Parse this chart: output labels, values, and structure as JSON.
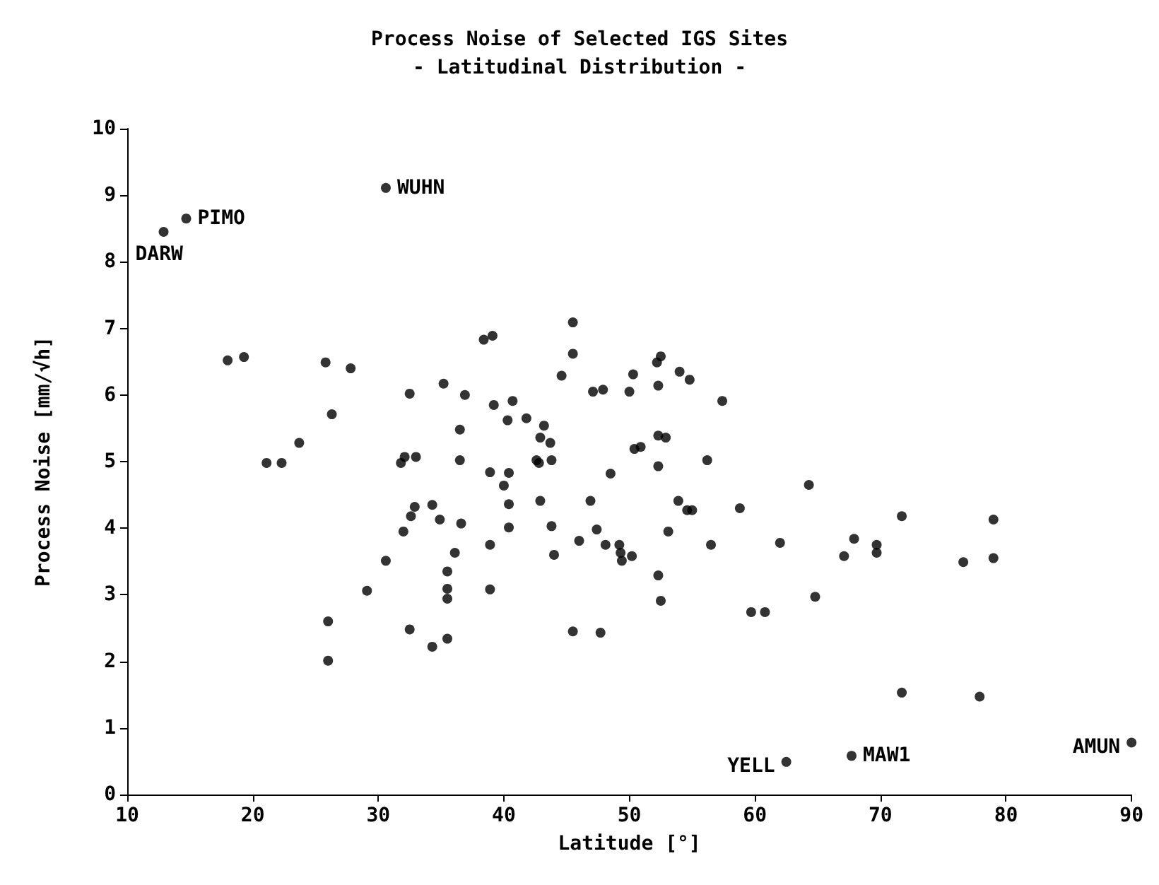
{
  "chart_data": {
    "type": "scatter",
    "title": "Process Noise of Selected IGS Sites",
    "subtitle": "- Latitudinal Distribution -",
    "xlabel": "Latitude [°]",
    "ylabel": "Process Noise [mm/√h]",
    "xlim": [
      10,
      90
    ],
    "xticks": [
      10,
      20,
      30,
      40,
      50,
      60,
      70,
      80,
      90
    ],
    "ylim": [
      0,
      10
    ],
    "yticks": [
      0,
      1,
      2,
      3,
      4,
      5,
      6,
      7,
      8,
      9,
      10
    ],
    "grid": false,
    "marker": "circle",
    "series": [
      {
        "color": "#000000",
        "x": [
          12.9,
          14.7,
          30.6,
          18.0,
          19.3,
          25.8,
          27.8,
          32.5,
          35.2,
          36.9,
          26.3,
          36.5,
          23.7,
          21.1,
          22.3,
          31.8,
          32.1,
          33.0,
          36.5,
          34.3,
          32.9,
          32.6,
          34.9,
          36.6,
          32.0,
          36.1,
          30.6,
          35.5,
          35.5,
          35.5,
          29.1,
          26.0,
          32.5,
          35.5,
          34.3,
          26.0,
          45.5,
          38.4,
          39.1,
          45.5,
          52.5,
          52.2,
          44.6,
          50.3,
          54.0,
          54.8,
          47.1,
          47.9,
          50.0,
          52.3,
          39.2,
          40.7,
          57.4,
          40.3,
          41.8,
          43.2,
          42.9,
          43.7,
          52.3,
          52.9,
          50.4,
          50.9,
          42.6,
          42.8,
          43.8,
          52.3,
          56.2,
          38.9,
          40.4,
          48.5,
          40.0,
          40.4,
          42.9,
          46.9,
          53.9,
          54.6,
          55.0,
          58.8,
          40.4,
          43.8,
          47.4,
          53.1,
          46.0,
          48.1,
          49.2,
          49.3,
          49.4,
          50.2,
          56.5,
          38.9,
          44.0,
          38.9,
          52.3,
          52.5,
          59.7,
          60.8,
          45.5,
          47.7,
          64.3,
          62.0,
          67.9,
          67.1,
          69.7,
          69.7,
          71.7,
          79.0,
          76.6,
          79.0,
          64.8,
          71.7,
          77.9,
          62.5,
          67.7,
          90.0
        ],
        "values": [
          8.45,
          8.65,
          9.11,
          6.52,
          6.57,
          6.49,
          6.4,
          6.02,
          6.17,
          6.0,
          5.71,
          5.48,
          5.28,
          4.98,
          4.98,
          4.98,
          5.07,
          5.07,
          5.02,
          4.35,
          4.32,
          4.18,
          4.13,
          4.07,
          3.95,
          3.63,
          3.51,
          3.35,
          3.09,
          2.94,
          3.06,
          2.6,
          2.48,
          2.34,
          2.22,
          2.01,
          7.09,
          6.83,
          6.89,
          6.62,
          6.58,
          6.49,
          6.29,
          6.31,
          6.35,
          6.23,
          6.05,
          6.08,
          6.05,
          6.14,
          5.85,
          5.91,
          5.91,
          5.62,
          5.65,
          5.54,
          5.36,
          5.28,
          5.39,
          5.36,
          5.19,
          5.22,
          5.02,
          4.98,
          5.02,
          4.93,
          5.02,
          4.84,
          4.83,
          4.82,
          4.64,
          4.36,
          4.41,
          4.41,
          4.41,
          4.27,
          4.27,
          4.3,
          4.01,
          4.03,
          3.98,
          3.95,
          3.81,
          3.75,
          3.75,
          3.63,
          3.51,
          3.58,
          3.75,
          3.75,
          3.6,
          3.08,
          3.29,
          2.91,
          2.74,
          2.74,
          2.45,
          2.43,
          4.65,
          3.78,
          3.84,
          3.58,
          3.75,
          3.63,
          4.18,
          4.13,
          3.49,
          3.55,
          2.97,
          1.53,
          1.47,
          0.49,
          0.58,
          0.78
        ]
      }
    ],
    "annotations": [
      {
        "text": "DARW",
        "x": 12.9,
        "y": 8.45
      },
      {
        "text": "PIMO",
        "x": 14.7,
        "y": 8.65
      },
      {
        "text": "WUHN",
        "x": 30.6,
        "y": 9.11
      },
      {
        "text": "YELL",
        "x": 62.5,
        "y": 0.49
      },
      {
        "text": "MAW1",
        "x": 67.7,
        "y": 0.58
      },
      {
        "text": "AMUN",
        "x": 90.0,
        "y": 0.78
      }
    ]
  }
}
